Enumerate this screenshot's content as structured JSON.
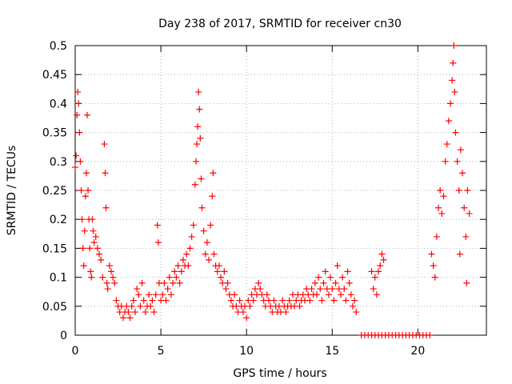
{
  "chart_data": {
    "type": "scatter",
    "title": "Day 238 of 2017, SRMTID for receiver cn30",
    "xlabel": "GPS time / hours",
    "ylabel": "SRMTID / TECUs",
    "xlim": [
      0,
      24
    ],
    "ylim": [
      0,
      0.5
    ],
    "x_ticks": [
      0,
      5,
      10,
      15,
      20
    ],
    "x_tick_labels": [
      "0",
      "5",
      "10",
      "15",
      "20"
    ],
    "y_ticks": [
      0,
      0.05,
      0.1,
      0.15,
      0.2,
      0.25,
      0.3,
      0.35,
      0.4,
      0.45,
      0.5
    ],
    "y_tick_labels": [
      "0",
      "0.05",
      "0.1",
      "0.15",
      "0.2",
      "0.25",
      "0.3",
      "0.35",
      "0.4",
      "0.45",
      "0.5"
    ],
    "grid": true,
    "marker": "+",
    "color": "#ff0000",
    "series": [
      {
        "name": "SRMTID",
        "points": [
          [
            0.0,
            0.29
          ],
          [
            0.05,
            0.31
          ],
          [
            0.1,
            0.38
          ],
          [
            0.15,
            0.42
          ],
          [
            0.2,
            0.4
          ],
          [
            0.25,
            0.35
          ],
          [
            0.3,
            0.3
          ],
          [
            0.35,
            0.25
          ],
          [
            0.4,
            0.2
          ],
          [
            0.45,
            0.15
          ],
          [
            0.5,
            0.12
          ],
          [
            0.55,
            0.18
          ],
          [
            0.6,
            0.24
          ],
          [
            0.65,
            0.28
          ],
          [
            0.7,
            0.38
          ],
          [
            0.75,
            0.25
          ],
          [
            0.8,
            0.2
          ],
          [
            0.85,
            0.15
          ],
          [
            0.9,
            0.11
          ],
          [
            0.95,
            0.1
          ],
          [
            1.0,
            0.2
          ],
          [
            1.05,
            0.18
          ],
          [
            1.1,
            0.16
          ],
          [
            1.2,
            0.17
          ],
          [
            1.3,
            0.15
          ],
          [
            1.4,
            0.14
          ],
          [
            1.5,
            0.13
          ],
          [
            1.6,
            0.1
          ],
          [
            1.7,
            0.33
          ],
          [
            1.75,
            0.28
          ],
          [
            1.8,
            0.22
          ],
          [
            1.85,
            0.09
          ],
          [
            1.9,
            0.08
          ],
          [
            2.0,
            0.12
          ],
          [
            2.1,
            0.11
          ],
          [
            2.2,
            0.1
          ],
          [
            2.3,
            0.09
          ],
          [
            2.4,
            0.06
          ],
          [
            2.5,
            0.05
          ],
          [
            2.6,
            0.04
          ],
          [
            2.7,
            0.05
          ],
          [
            2.8,
            0.03
          ],
          [
            2.9,
            0.04
          ],
          [
            3.0,
            0.05
          ],
          [
            3.1,
            0.04
          ],
          [
            3.2,
            0.03
          ],
          [
            3.3,
            0.05
          ],
          [
            3.4,
            0.06
          ],
          [
            3.5,
            0.04
          ],
          [
            3.6,
            0.08
          ],
          [
            3.7,
            0.07
          ],
          [
            3.8,
            0.05
          ],
          [
            3.9,
            0.09
          ],
          [
            4.0,
            0.06
          ],
          [
            4.1,
            0.04
          ],
          [
            4.2,
            0.05
          ],
          [
            4.3,
            0.07
          ],
          [
            4.4,
            0.05
          ],
          [
            4.5,
            0.06
          ],
          [
            4.6,
            0.04
          ],
          [
            4.7,
            0.07
          ],
          [
            4.8,
            0.19
          ],
          [
            4.85,
            0.16
          ],
          [
            4.9,
            0.09
          ],
          [
            5.0,
            0.06
          ],
          [
            5.1,
            0.07
          ],
          [
            5.2,
            0.09
          ],
          [
            5.3,
            0.06
          ],
          [
            5.4,
            0.08
          ],
          [
            5.5,
            0.1
          ],
          [
            5.6,
            0.07
          ],
          [
            5.7,
            0.09
          ],
          [
            5.8,
            0.11
          ],
          [
            5.9,
            0.1
          ],
          [
            6.0,
            0.12
          ],
          [
            6.1,
            0.09
          ],
          [
            6.2,
            0.11
          ],
          [
            6.3,
            0.13
          ],
          [
            6.4,
            0.12
          ],
          [
            6.5,
            0.14
          ],
          [
            6.6,
            0.12
          ],
          [
            6.7,
            0.15
          ],
          [
            6.8,
            0.17
          ],
          [
            6.9,
            0.19
          ],
          [
            7.0,
            0.26
          ],
          [
            7.05,
            0.3
          ],
          [
            7.1,
            0.33
          ],
          [
            7.15,
            0.36
          ],
          [
            7.2,
            0.42
          ],
          [
            7.25,
            0.39
          ],
          [
            7.3,
            0.34
          ],
          [
            7.35,
            0.27
          ],
          [
            7.4,
            0.22
          ],
          [
            7.5,
            0.18
          ],
          [
            7.6,
            0.14
          ],
          [
            7.7,
            0.16
          ],
          [
            7.8,
            0.13
          ],
          [
            7.9,
            0.19
          ],
          [
            8.0,
            0.24
          ],
          [
            8.05,
            0.28
          ],
          [
            8.1,
            0.14
          ],
          [
            8.2,
            0.12
          ],
          [
            8.3,
            0.11
          ],
          [
            8.4,
            0.12
          ],
          [
            8.5,
            0.1
          ],
          [
            8.6,
            0.09
          ],
          [
            8.7,
            0.11
          ],
          [
            8.8,
            0.08
          ],
          [
            8.9,
            0.09
          ],
          [
            9.0,
            0.07
          ],
          [
            9.1,
            0.06
          ],
          [
            9.2,
            0.05
          ],
          [
            9.3,
            0.07
          ],
          [
            9.4,
            0.05
          ],
          [
            9.5,
            0.04
          ],
          [
            9.6,
            0.06
          ],
          [
            9.7,
            0.05
          ],
          [
            9.8,
            0.04
          ],
          [
            9.9,
            0.05
          ],
          [
            10.0,
            0.03
          ],
          [
            10.1,
            0.06
          ],
          [
            10.2,
            0.05
          ],
          [
            10.3,
            0.07
          ],
          [
            10.4,
            0.06
          ],
          [
            10.5,
            0.08
          ],
          [
            10.6,
            0.07
          ],
          [
            10.7,
            0.09
          ],
          [
            10.8,
            0.08
          ],
          [
            10.9,
            0.07
          ],
          [
            11.0,
            0.06
          ],
          [
            11.1,
            0.05
          ],
          [
            11.2,
            0.07
          ],
          [
            11.3,
            0.06
          ],
          [
            11.4,
            0.05
          ],
          [
            11.5,
            0.04
          ],
          [
            11.6,
            0.06
          ],
          [
            11.7,
            0.05
          ],
          [
            11.8,
            0.04
          ],
          [
            11.9,
            0.05
          ],
          [
            12.0,
            0.04
          ],
          [
            12.1,
            0.06
          ],
          [
            12.2,
            0.05
          ],
          [
            12.3,
            0.04
          ],
          [
            12.4,
            0.05
          ],
          [
            12.5,
            0.06
          ],
          [
            12.6,
            0.05
          ],
          [
            12.7,
            0.07
          ],
          [
            12.8,
            0.05
          ],
          [
            12.9,
            0.06
          ],
          [
            13.0,
            0.07
          ],
          [
            13.1,
            0.05
          ],
          [
            13.2,
            0.06
          ],
          [
            13.3,
            0.07
          ],
          [
            13.4,
            0.06
          ],
          [
            13.5,
            0.08
          ],
          [
            13.6,
            0.07
          ],
          [
            13.7,
            0.06
          ],
          [
            13.8,
            0.08
          ],
          [
            13.9,
            0.07
          ],
          [
            14.0,
            0.09
          ],
          [
            14.1,
            0.07
          ],
          [
            14.2,
            0.1
          ],
          [
            14.3,
            0.08
          ],
          [
            14.4,
            0.06
          ],
          [
            14.5,
            0.09
          ],
          [
            14.6,
            0.11
          ],
          [
            14.7,
            0.08
          ],
          [
            14.8,
            0.07
          ],
          [
            14.9,
            0.1
          ],
          [
            15.0,
            0.08
          ],
          [
            15.1,
            0.06
          ],
          [
            15.2,
            0.09
          ],
          [
            15.3,
            0.12
          ],
          [
            15.4,
            0.08
          ],
          [
            15.5,
            0.07
          ],
          [
            15.6,
            0.1
          ],
          [
            15.7,
            0.08
          ],
          [
            15.8,
            0.06
          ],
          [
            15.9,
            0.11
          ],
          [
            16.0,
            0.09
          ],
          [
            16.1,
            0.07
          ],
          [
            16.2,
            0.05
          ],
          [
            16.3,
            0.06
          ],
          [
            16.4,
            0.04
          ],
          [
            16.7,
            0.0
          ],
          [
            16.9,
            0.0
          ],
          [
            17.1,
            0.0
          ],
          [
            17.3,
            0.0
          ],
          [
            17.5,
            0.0
          ],
          [
            17.7,
            0.0
          ],
          [
            17.9,
            0.0
          ],
          [
            18.1,
            0.0
          ],
          [
            18.3,
            0.0
          ],
          [
            18.5,
            0.0
          ],
          [
            18.7,
            0.0
          ],
          [
            18.9,
            0.0
          ],
          [
            19.1,
            0.0
          ],
          [
            19.3,
            0.0
          ],
          [
            19.5,
            0.0
          ],
          [
            19.7,
            0.0
          ],
          [
            19.9,
            0.0
          ],
          [
            20.1,
            0.0
          ],
          [
            20.3,
            0.0
          ],
          [
            20.5,
            0.0
          ],
          [
            20.7,
            0.0
          ],
          [
            17.3,
            0.11
          ],
          [
            17.4,
            0.08
          ],
          [
            17.5,
            0.1
          ],
          [
            17.6,
            0.07
          ],
          [
            17.7,
            0.11
          ],
          [
            17.8,
            0.12
          ],
          [
            17.9,
            0.14
          ],
          [
            18.0,
            0.13
          ],
          [
            20.8,
            0.14
          ],
          [
            20.9,
            0.12
          ],
          [
            21.0,
            0.1
          ],
          [
            21.1,
            0.17
          ],
          [
            21.2,
            0.22
          ],
          [
            21.3,
            0.25
          ],
          [
            21.4,
            0.21
          ],
          [
            21.5,
            0.24
          ],
          [
            21.6,
            0.3
          ],
          [
            21.7,
            0.33
          ],
          [
            21.8,
            0.37
          ],
          [
            21.9,
            0.4
          ],
          [
            22.0,
            0.44
          ],
          [
            22.05,
            0.47
          ],
          [
            22.1,
            0.5
          ],
          [
            22.15,
            0.42
          ],
          [
            22.2,
            0.35
          ],
          [
            22.3,
            0.3
          ],
          [
            22.4,
            0.25
          ],
          [
            22.45,
            0.14
          ],
          [
            22.5,
            0.32
          ],
          [
            22.6,
            0.28
          ],
          [
            22.7,
            0.22
          ],
          [
            22.8,
            0.17
          ],
          [
            22.85,
            0.09
          ],
          [
            22.9,
            0.25
          ],
          [
            23.0,
            0.21
          ]
        ]
      }
    ]
  }
}
